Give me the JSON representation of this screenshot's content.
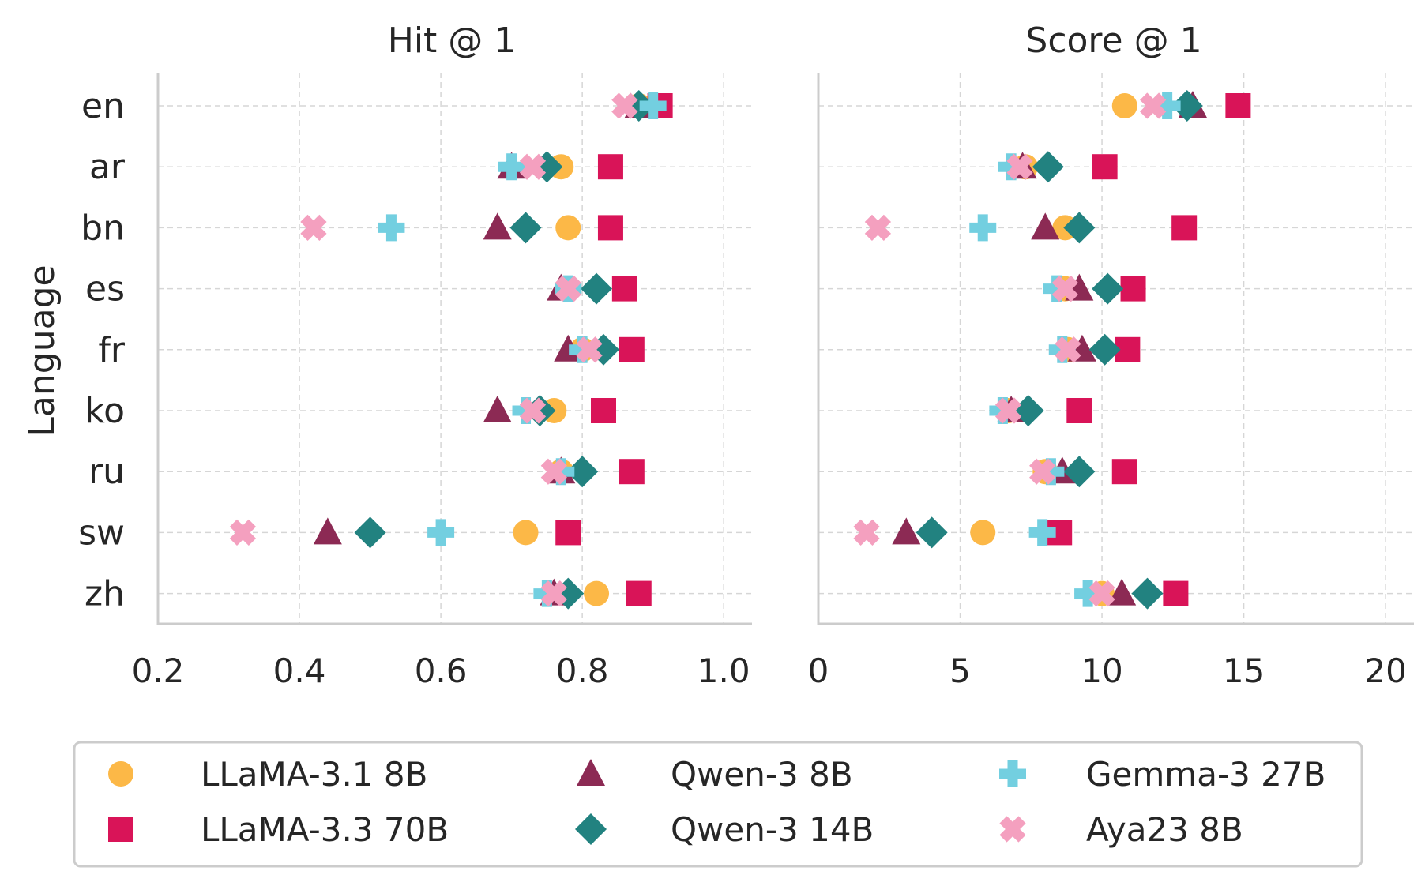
{
  "figure": {
    "ylabel": "Language"
  },
  "colors": {
    "LLaMA-3.1 8B": "#fcb847",
    "LLaMA-3.3 70B": "#d91458",
    "Qwen-3 8B": "#8c2a54",
    "Qwen-3 14B": "#228280",
    "Gemma-3 27B": "#73cfe0",
    "Aya23 8B": "#f4a0bf"
  },
  "chart_data": [
    {
      "type": "scatter",
      "title": "Hit @ 1",
      "xlabel": "",
      "ylabel": "Language",
      "xlim": [
        0.2,
        1.04
      ],
      "xticks": [
        "0.2",
        "0.4",
        "0.6",
        "0.8",
        "1.0"
      ],
      "xtick_values": [
        0.2,
        0.4,
        0.6,
        0.8,
        1.0
      ],
      "grid": true,
      "categories": [
        "en",
        "ar",
        "bn",
        "es",
        "fr",
        "ko",
        "ru",
        "sw",
        "zh"
      ],
      "series": [
        {
          "name": "LLaMA-3.1 8B",
          "marker": "circle",
          "values": [
            0.88,
            0.77,
            0.78,
            0.78,
            0.8,
            0.76,
            0.77,
            0.72,
            0.82
          ]
        },
        {
          "name": "LLaMA-3.3 70B",
          "marker": "square",
          "values": [
            0.91,
            0.84,
            0.84,
            0.86,
            0.87,
            0.83,
            0.87,
            0.78,
            0.88
          ]
        },
        {
          "name": "Qwen-3 8B",
          "marker": "triangle",
          "values": [
            0.88,
            0.7,
            0.68,
            0.77,
            0.78,
            0.68,
            0.77,
            0.44,
            0.76
          ]
        },
        {
          "name": "Qwen-3 14B",
          "marker": "diamond",
          "values": [
            0.88,
            0.75,
            0.72,
            0.82,
            0.83,
            0.74,
            0.8,
            0.5,
            0.78
          ]
        },
        {
          "name": "Gemma-3 27B",
          "marker": "plus",
          "values": [
            0.9,
            0.7,
            0.53,
            0.78,
            0.8,
            0.72,
            0.77,
            0.6,
            0.75
          ]
        },
        {
          "name": "Aya23 8B",
          "marker": "x",
          "values": [
            0.86,
            0.73,
            0.42,
            0.78,
            0.81,
            0.73,
            0.76,
            0.32,
            0.76
          ]
        }
      ]
    },
    {
      "type": "scatter",
      "title": "Score @ 1",
      "xlabel": "",
      "ylabel": "",
      "xlim": [
        0,
        21
      ],
      "xticks": [
        "0",
        "5",
        "10",
        "15",
        "20"
      ],
      "xtick_values": [
        0,
        5,
        10,
        15,
        20
      ],
      "grid": true,
      "categories": [
        "en",
        "ar",
        "bn",
        "es",
        "fr",
        "ko",
        "ru",
        "sw",
        "zh"
      ],
      "series": [
        {
          "name": "LLaMA-3.1 8B",
          "marker": "circle",
          "values": [
            10.8,
            7.3,
            8.7,
            8.7,
            8.8,
            6.7,
            8.0,
            5.8,
            10.0
          ]
        },
        {
          "name": "LLaMA-3.3 70B",
          "marker": "square",
          "values": [
            14.8,
            10.1,
            12.9,
            11.1,
            10.9,
            9.2,
            10.8,
            8.5,
            12.6
          ]
        },
        {
          "name": "Qwen-3 8B",
          "marker": "triangle",
          "values": [
            13.2,
            7.2,
            8.0,
            9.2,
            9.3,
            6.8,
            8.6,
            3.1,
            10.7
          ]
        },
        {
          "name": "Qwen-3 14B",
          "marker": "diamond",
          "values": [
            13.0,
            8.1,
            9.2,
            10.2,
            10.1,
            7.4,
            9.2,
            4.0,
            11.6
          ]
        },
        {
          "name": "Gemma-3 27B",
          "marker": "plus",
          "values": [
            12.3,
            6.8,
            5.8,
            8.4,
            8.6,
            6.5,
            8.2,
            7.9,
            9.5
          ]
        },
        {
          "name": "Aya23 8B",
          "marker": "x",
          "values": [
            11.8,
            7.1,
            2.1,
            8.7,
            8.8,
            6.7,
            7.9,
            1.7,
            10.0
          ]
        }
      ]
    }
  ],
  "legend": {
    "items": [
      {
        "label": "LLaMA-3.1 8B",
        "marker": "circle"
      },
      {
        "label": "LLaMA-3.3 70B",
        "marker": "square"
      },
      {
        "label": "Qwen-3 8B",
        "marker": "triangle"
      },
      {
        "label": "Qwen-3 14B",
        "marker": "diamond"
      },
      {
        "label": "Gemma-3 27B",
        "marker": "plus"
      },
      {
        "label": "Aya23 8B",
        "marker": "x"
      }
    ]
  }
}
